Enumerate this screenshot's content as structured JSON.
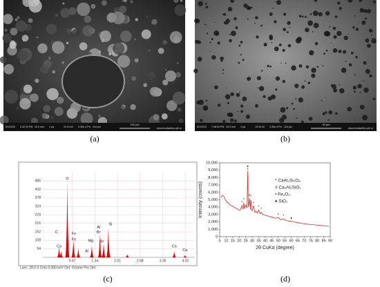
{
  "panels": [
    {
      "caption": "(a)",
      "info": [
        "8/1/2020",
        "2:42:23 PM",
        "10.0 mm",
        "1 pa",
        "10.00 kV",
        "3.35e-4 Pa",
        "414 µm"
      ],
      "scale": "100 µm",
      "site": "www.foodsafety.upb.ro"
    },
    {
      "caption": "(b)",
      "info": [
        "8/1/2020",
        "7:38:03 PM",
        "10.0 mm",
        "1 pa",
        "10.00 kV",
        "3.35e-4 Pa",
        "104 µm"
      ],
      "scale": "30 µm",
      "site": "www.foodsafety.upb.ro"
    },
    {
      "caption": "(c)"
    },
    {
      "caption": "(d)"
    }
  ],
  "chart_data": [
    {
      "type": "spectrum",
      "color": "#e00000",
      "x": [
        0.28,
        0.34,
        0.525,
        0.705,
        0.85,
        1.25,
        1.49,
        1.6,
        1.74,
        2.3,
        3.69,
        4.01
      ],
      "values": [
        70,
        40,
        486,
        115,
        60,
        75,
        150,
        90,
        190,
        20,
        40,
        15
      ],
      "xlim": [
        -0.2,
        4.3
      ],
      "ylim": [
        0,
        540
      ],
      "xticks": [
        0.67,
        1.34,
        2.01,
        2.68,
        3.35,
        4.02
      ],
      "yticks": [
        54,
        108,
        162,
        216,
        270,
        324,
        378,
        432,
        486
      ],
      "labels": [
        {
          "text": "O",
          "x": 0.525,
          "y": 500
        },
        {
          "text": "C",
          "x": 0.2,
          "y": 160
        },
        {
          "text": "Ca",
          "x": 0.28,
          "y": 70
        },
        {
          "text": "Fe",
          "x": 0.72,
          "y": 150
        },
        {
          "text": "Fe",
          "x": 0.72,
          "y": 115
        },
        {
          "text": "Mg",
          "x": 1.22,
          "y": 105
        },
        {
          "text": "Al",
          "x": 1.45,
          "y": 190
        },
        {
          "text": "Br",
          "x": 1.45,
          "y": 160
        },
        {
          "text": "Si",
          "x": 1.8,
          "y": 210
        },
        {
          "text": "Al",
          "x": 1.1,
          "y": 40
        },
        {
          "text": "Br",
          "x": 1.55,
          "y": 100
        },
        {
          "text": "Ca",
          "x": 3.69,
          "y": 70
        },
        {
          "text": "Ca",
          "x": 4.01,
          "y": 45
        }
      ],
      "footer": "Lsec: 28.6 0 Cnts 0.000 keV Det: Octane Pro Det"
    },
    {
      "type": "line",
      "color": "#e8201a",
      "xlabel": "2θ CuKα (degree)",
      "ylabel": "Intensity (counts)",
      "x": [
        6,
        7,
        8,
        9,
        10,
        11,
        12,
        13,
        14,
        15,
        16,
        17,
        18,
        19,
        20,
        21,
        22,
        23,
        23.5,
        24,
        24.5,
        25,
        26,
        26.6,
        27,
        27.5,
        28,
        28.5,
        29,
        29.5,
        30,
        31,
        32,
        33,
        34,
        35,
        36,
        37,
        38,
        40,
        42,
        44,
        46,
        48,
        50,
        52,
        54,
        56,
        58,
        60,
        62,
        65,
        68,
        70,
        72,
        75,
        78,
        80,
        83,
        86,
        89
      ],
      "values": [
        5300,
        5600,
        5500,
        5100,
        4800,
        4600,
        4500,
        4300,
        4200,
        4100,
        4000,
        3900,
        3800,
        3700,
        3600,
        3650,
        4200,
        3700,
        4600,
        3800,
        4100,
        4300,
        3900,
        8900,
        4000,
        4500,
        5200,
        3700,
        5000,
        3600,
        3500,
        4200,
        3300,
        3400,
        3200,
        3600,
        3100,
        3300,
        3000,
        2900,
        2800,
        2700,
        2600,
        2500,
        2600,
        2300,
        2400,
        2200,
        2100,
        2100,
        2000,
        1900,
        1800,
        1750,
        1700,
        1650,
        1600,
        1550,
        1500,
        1450,
        1400
      ],
      "xlim": [
        5,
        90
      ],
      "ylim": [
        0,
        10000
      ],
      "xticks": [
        5,
        10,
        15,
        20,
        25,
        30,
        35,
        40,
        45,
        50,
        55,
        60,
        65,
        70,
        75,
        80,
        85,
        90
      ],
      "yticks": [
        0,
        {
          "value": 1000,
          "label": "1,000"
        },
        {
          "value": 2000,
          "label": "2,000"
        },
        {
          "value": 3000,
          "label": "3,000"
        },
        {
          "value": 4000,
          "label": "4,000"
        },
        {
          "value": 5000,
          "label": "5,000"
        },
        {
          "value": 6000,
          "label": "6,000"
        },
        {
          "value": 7000,
          "label": "7,000"
        },
        {
          "value": 8000,
          "label": "8,000"
        },
        {
          "value": 9000,
          "label": "9,000"
        },
        {
          "value": 10000,
          "label": "10,000"
        }
      ],
      "legend": [
        "* CaAl₂Si₂O₈",
        "# Ca₂Al₂SiO₇",
        "• Fe₂O₃",
        "♦ SiO₂"
      ],
      "annotations": [
        {
          "text": "♦",
          "x": 26.6,
          "y": 9500
        },
        {
          "text": "•",
          "x": 26.6,
          "y": 9150
        },
        {
          "text": "*",
          "x": 22,
          "y": 4600
        },
        {
          "text": "*",
          "x": 23.5,
          "y": 5000
        },
        {
          "text": "#",
          "x": 28,
          "y": 5600
        },
        {
          "text": "*",
          "x": 29,
          "y": 5400
        },
        {
          "text": "•",
          "x": 31,
          "y": 4600
        },
        {
          "text": "*",
          "x": 35,
          "y": 4000
        },
        {
          "text": "*",
          "x": 37,
          "y": 3700
        },
        {
          "text": "•",
          "x": 50,
          "y": 3000
        },
        {
          "text": "*",
          "x": 54,
          "y": 2800
        },
        {
          "text": "♦",
          "x": 60,
          "y": 2500
        }
      ]
    }
  ]
}
